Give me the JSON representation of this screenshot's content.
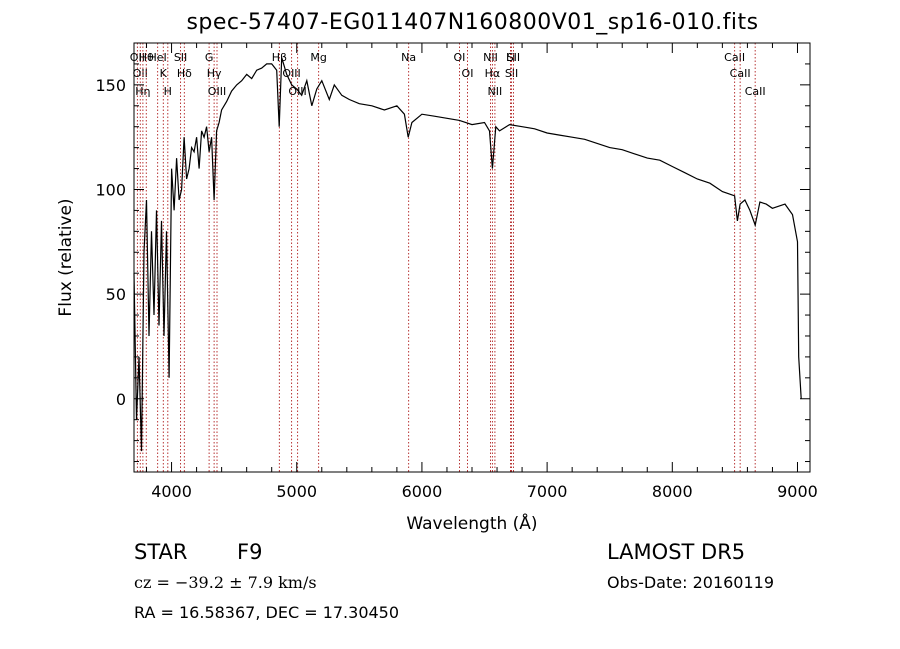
{
  "title": "spec-57407-EG011407N160800V01_sp16-010.fits",
  "info": {
    "class": "STAR",
    "subclass": "F9",
    "survey": "LAMOST DR5",
    "cz": "cz = −39.2 ± 7.9 km/s",
    "obs_date": "Obs-Date: 20160119",
    "radec": "RA =  16.58367, DEC =  17.30450"
  },
  "chart_data": {
    "type": "line",
    "xlabel": "Wavelength (Å)",
    "ylabel": "Flux (relative)",
    "xlim": [
      3700,
      9100
    ],
    "ylim": [
      -35,
      170
    ],
    "xticks": [
      4000,
      5000,
      6000,
      7000,
      8000,
      9000
    ],
    "yticks": [
      0,
      50,
      100,
      150
    ],
    "grid": false,
    "series": [
      {
        "name": "",
        "x": [
          3700,
          3720,
          3740,
          3760,
          3780,
          3800,
          3820,
          3840,
          3860,
          3880,
          3900,
          3920,
          3940,
          3960,
          3980,
          4000,
          4020,
          4040,
          4060,
          4080,
          4100,
          4120,
          4140,
          4160,
          4180,
          4200,
          4220,
          4240,
          4260,
          4280,
          4300,
          4320,
          4340,
          4360,
          4380,
          4400,
          4440,
          4480,
          4520,
          4560,
          4600,
          4640,
          4680,
          4720,
          4760,
          4800,
          4840,
          4860,
          4880,
          4920,
          4960,
          5000,
          5040,
          5080,
          5120,
          5160,
          5200,
          5260,
          5300,
          5360,
          5420,
          5500,
          5600,
          5700,
          5800,
          5860,
          5890,
          5920,
          6000,
          6100,
          6200,
          6300,
          6400,
          6500,
          6540,
          6563,
          6590,
          6620,
          6700,
          6800,
          6900,
          7000,
          7100,
          7200,
          7300,
          7400,
          7500,
          7600,
          7700,
          7800,
          7900,
          8000,
          8100,
          8200,
          8300,
          8400,
          8498,
          8520,
          8542,
          8580,
          8620,
          8662,
          8700,
          8750,
          8800,
          8850,
          8900,
          8960,
          9000,
          9010,
          9030
        ],
        "values": [
          60,
          -10,
          20,
          -25,
          70,
          95,
          30,
          80,
          40,
          90,
          35,
          85,
          30,
          80,
          10,
          110,
          90,
          115,
          95,
          100,
          125,
          105,
          110,
          120,
          118,
          125,
          110,
          128,
          125,
          130,
          118,
          125,
          95,
          128,
          132,
          138,
          142,
          147,
          150,
          152,
          155,
          153,
          157,
          158,
          160,
          160,
          157,
          130,
          163,
          155,
          150,
          148,
          145,
          152,
          140,
          148,
          152,
          143,
          150,
          145,
          143,
          141,
          140,
          138,
          140,
          136,
          125,
          132,
          136,
          135,
          134,
          133,
          131,
          132,
          128,
          110,
          130,
          128,
          131,
          130,
          129,
          127,
          126,
          125,
          124,
          122,
          120,
          119,
          117,
          115,
          114,
          111,
          108,
          105,
          103,
          99,
          97,
          85,
          93,
          95,
          90,
          83,
          94,
          93,
          91,
          92,
          93,
          88,
          75,
          20,
          0
        ]
      }
    ],
    "lines": [
      {
        "wave": 3727,
        "label": "OII"
      },
      {
        "wave": 3750,
        "label": "OII"
      },
      {
        "wave": 3771,
        "label": "Hη"
      },
      {
        "wave": 3798,
        "label": "Hθ"
      },
      {
        "wave": 3889,
        "label": "HeI"
      },
      {
        "wave": 3934,
        "label": "K"
      },
      {
        "wave": 3970,
        "label": "H"
      },
      {
        "wave": 4072,
        "label": "SII"
      },
      {
        "wave": 4102,
        "label": "Hδ"
      },
      {
        "wave": 4300,
        "label": "G"
      },
      {
        "wave": 4340,
        "label": "Hγ"
      },
      {
        "wave": 4363,
        "label": "OIII"
      },
      {
        "wave": 4861,
        "label": "Hβ"
      },
      {
        "wave": 4959,
        "label": "OIII"
      },
      {
        "wave": 5007,
        "label": "OIII"
      },
      {
        "wave": 5175,
        "label": "Mg"
      },
      {
        "wave": 5894,
        "label": "Na"
      },
      {
        "wave": 6300,
        "label": "OI"
      },
      {
        "wave": 6364,
        "label": "OI"
      },
      {
        "wave": 6548,
        "label": "NII"
      },
      {
        "wave": 6563,
        "label": "Hα"
      },
      {
        "wave": 6583,
        "label": "NII"
      },
      {
        "wave": 6708,
        "label": "Li"
      },
      {
        "wave": 6716,
        "label": "SII"
      },
      {
        "wave": 6731,
        "label": "SII"
      },
      {
        "wave": 8498,
        "label": "CaII"
      },
      {
        "wave": 8542,
        "label": "CaII"
      },
      {
        "wave": 8662,
        "label": "CaII"
      }
    ]
  }
}
